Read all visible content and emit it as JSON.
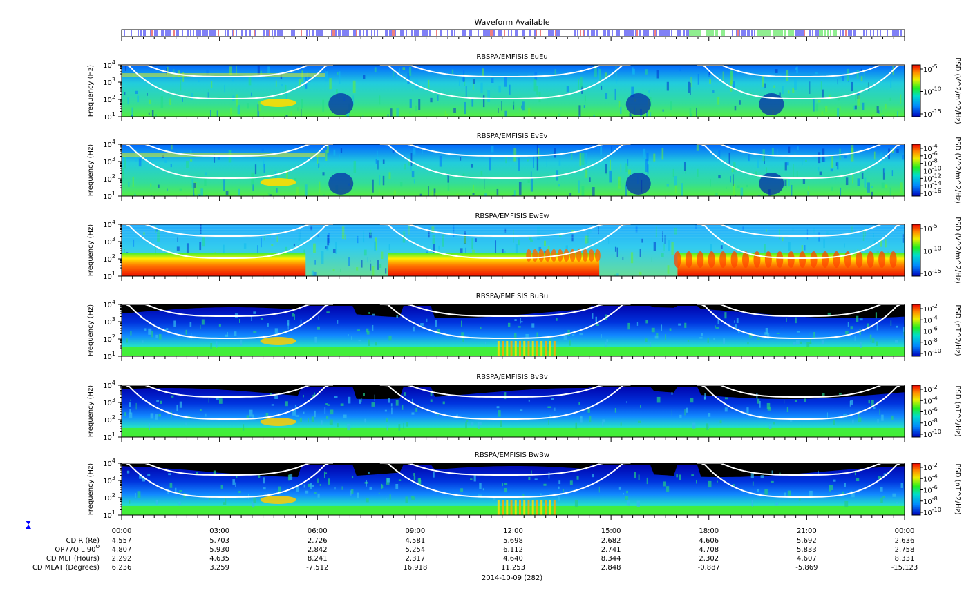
{
  "waveform": {
    "title": "Waveform Available"
  },
  "colors": {
    "blue": "#0000ee",
    "green": "#22dd22",
    "red": "#dd0000",
    "white_curve": "#ffffff"
  },
  "chart_data": [
    {
      "type": "heatmap",
      "title": "RBSPA/EMFISIS  EuEu",
      "ylabel": "Frequency (Hz)",
      "y_ticks": [
        "10",
        "10",
        "10",
        "10"
      ],
      "y_tick_exp": [
        "1",
        "2",
        "3",
        "4"
      ],
      "ylim": [
        10,
        10000
      ],
      "yscale": "log",
      "colorbar_label": "PSD (V^2/m^2/Hz)",
      "colorbar_ticks": [
        "10",
        "10",
        "10"
      ],
      "colorbar_exp": [
        "-5",
        "-10",
        "-15"
      ]
    },
    {
      "type": "heatmap",
      "title": "RBSPA/EMFISIS  EvEv",
      "ylabel": "Frequency (Hz)",
      "y_ticks": [
        "10",
        "10",
        "10",
        "10"
      ],
      "y_tick_exp": [
        "1",
        "2",
        "3",
        "4"
      ],
      "ylim": [
        10,
        10000
      ],
      "yscale": "log",
      "colorbar_label": "PSD (V^2/m^2/Hz)",
      "colorbar_ticks": [
        "10",
        "10",
        "10",
        "10",
        "10",
        "10",
        "10"
      ],
      "colorbar_exp": [
        "-4",
        "-6",
        "-8",
        "-10",
        "-12",
        "-14",
        "-16"
      ]
    },
    {
      "type": "heatmap",
      "title": "RBSPA/EMFISIS  EwEw",
      "ylabel": "Frequency (Hz)",
      "y_ticks": [
        "10",
        "10",
        "10",
        "10"
      ],
      "y_tick_exp": [
        "1",
        "2",
        "3",
        "4"
      ],
      "ylim": [
        10,
        10000
      ],
      "yscale": "log",
      "colorbar_label": "PSD (V^2/m^2/Hz)",
      "colorbar_ticks": [
        "10",
        "10",
        "10"
      ],
      "colorbar_exp": [
        "-5",
        "-10",
        "-15"
      ]
    },
    {
      "type": "heatmap",
      "title": "RBSPA/EMFISIS  BuBu",
      "ylabel": "Frequency (Hz)",
      "y_ticks": [
        "10",
        "10",
        "10",
        "10"
      ],
      "y_tick_exp": [
        "1",
        "2",
        "3",
        "4"
      ],
      "ylim": [
        10,
        10000
      ],
      "yscale": "log",
      "colorbar_label": "PSD (nT^2/Hz)",
      "colorbar_ticks": [
        "10",
        "10",
        "10",
        "10",
        "10"
      ],
      "colorbar_exp": [
        "-2",
        "-4",
        "-6",
        "-8",
        "-10"
      ]
    },
    {
      "type": "heatmap",
      "title": "RBSPA/EMFISIS  BvBv",
      "ylabel": "Frequency (Hz)",
      "y_ticks": [
        "10",
        "10",
        "10",
        "10"
      ],
      "y_tick_exp": [
        "1",
        "2",
        "3",
        "4"
      ],
      "ylim": [
        10,
        10000
      ],
      "yscale": "log",
      "colorbar_label": "PSD (nT^2/Hz)",
      "colorbar_ticks": [
        "10",
        "10",
        "10",
        "10",
        "10"
      ],
      "colorbar_exp": [
        "-2",
        "-4",
        "-6",
        "-8",
        "-10"
      ]
    },
    {
      "type": "heatmap",
      "title": "RBSPA/EMFISIS  BwBw",
      "ylabel": "Frequency (Hz)",
      "y_ticks": [
        "10",
        "10",
        "10",
        "10"
      ],
      "y_tick_exp": [
        "1",
        "2",
        "3",
        "4"
      ],
      "ylim": [
        10,
        10000
      ],
      "yscale": "log",
      "colorbar_label": "PSD (nT^2/Hz)",
      "colorbar_ticks": [
        "10",
        "10",
        "10",
        "10",
        "10"
      ],
      "colorbar_exp": [
        "-2",
        "-4",
        "-6",
        "-8",
        "-10"
      ]
    }
  ],
  "x_axis": {
    "ticks": [
      "00:00",
      "03:00",
      "06:00",
      "09:00",
      "12:00",
      "15:00",
      "18:00",
      "21:00",
      "00:00"
    ],
    "date_label": "2014-10-09 (282)"
  },
  "ephemeris": {
    "labels": [
      "CD R (Re)",
      "OP77Q L 90",
      "CD MLT (Hours)",
      "CD MLAT (Degrees)"
    ],
    "label_sup": [
      "",
      "O",
      "",
      ""
    ],
    "rows": [
      [
        "4.557",
        "5.703",
        "2.726",
        "4.581",
        "5.698",
        "2.682",
        "4.606",
        "5.692",
        "2.636"
      ],
      [
        "4.807",
        "5.930",
        "2.842",
        "5.254",
        "6.112",
        "2.741",
        "4.708",
        "5.833",
        "2.758"
      ],
      [
        "2.292",
        "4.635",
        "8.241",
        "2.317",
        "4.640",
        "8.344",
        "2.302",
        "4.607",
        "8.331"
      ],
      [
        "6.236",
        "3.259",
        "-7.512",
        "16.918",
        "11.253",
        "2.848",
        "-0.887",
        "-5.869",
        "-15.123"
      ]
    ]
  }
}
